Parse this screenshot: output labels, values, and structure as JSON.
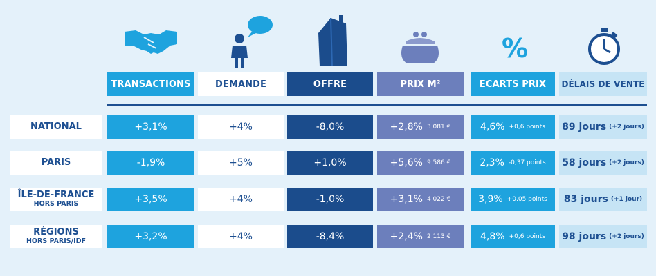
{
  "colors": {
    "transactions": "#1ea3de",
    "demande": "#ffffff",
    "offre": "#1b4c8c",
    "prix": "#6c7fbc",
    "ecarts": "#1ea3de",
    "delais": "#c6e4f5",
    "navy": "#1d4f91",
    "background": "#e4f1fa"
  },
  "icons": [
    "handshake-icon",
    "person-speech-icon",
    "house-icon",
    "purse-icon",
    "percent-icon",
    "stopwatch-icon"
  ],
  "chart_data": {
    "type": "table",
    "percent_symbol": "%",
    "columns": [
      "TRANSACTIONS",
      "DEMANDE",
      "OFFRE",
      "PRIX M²",
      "ECARTS PRIX",
      "DÉLAIS DE VENTE"
    ],
    "rows": [
      {
        "label": "NATIONAL",
        "sublabel": "",
        "transactions": "+3,1%",
        "demande": "+4%",
        "offre": "-8,0%",
        "prix": "+2,8%",
        "prix_m2": "3 081 €",
        "ecart": "4,6%",
        "ecart_points": "+0,6 points",
        "delai": "89 jours",
        "delai_diff": "(+2 jours)"
      },
      {
        "label": "PARIS",
        "sublabel": "",
        "transactions": "-1,9%",
        "demande": "+5%",
        "offre": "+1,0%",
        "prix": "+5,6%",
        "prix_m2": "9 586 €",
        "ecart": "2,3%",
        "ecart_points": "-0,37 points",
        "delai": "58 jours",
        "delai_diff": "(+2 jours)"
      },
      {
        "label": "ÎLE-DE-FRANCE",
        "sublabel": "HORS PARIS",
        "transactions": "+3,5%",
        "demande": "+4%",
        "offre": "-1,0%",
        "prix": "+3,1%",
        "prix_m2": "4 022 €",
        "ecart": "3,9%",
        "ecart_points": "+0,05 points",
        "delai": "83 jours",
        "delai_diff": "(+1 jour)"
      },
      {
        "label": "RÉGIONS",
        "sublabel": "HORS PARIS/IDF",
        "transactions": "+3,2%",
        "demande": "+4%",
        "offre": "-8,4%",
        "prix": "+2,4%",
        "prix_m2": "2 113 €",
        "ecart": "4,8%",
        "ecart_points": "+0,6 points",
        "delai": "98 jours",
        "delai_diff": "(+2 jours)"
      }
    ]
  }
}
